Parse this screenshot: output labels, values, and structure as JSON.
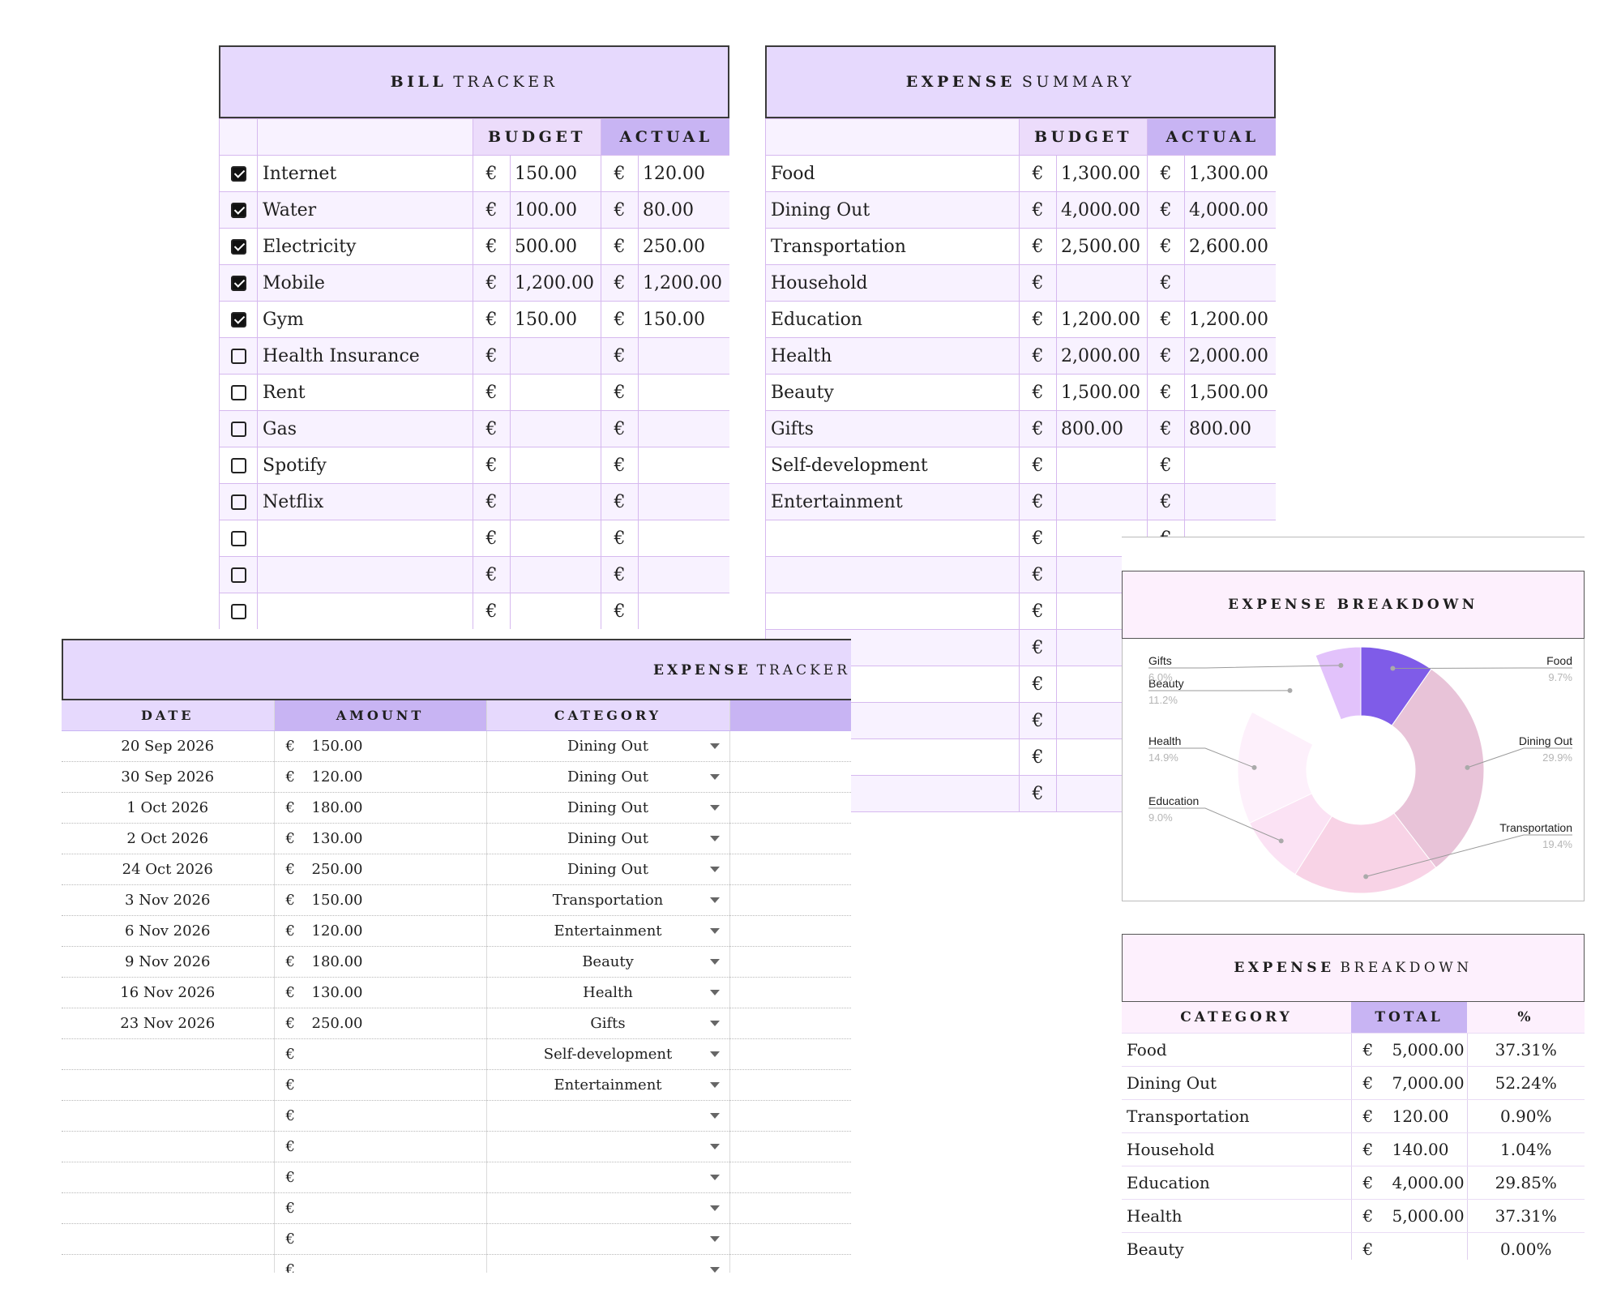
{
  "bill_tracker": {
    "title_bold": "BILL",
    "title_rest": "TRACKER",
    "budget_header": "BUDGET",
    "actual_header": "ACTUAL",
    "currency": "€",
    "rows": [
      {
        "checked": true,
        "name": "Internet",
        "budget": "150.00",
        "actual": "120.00"
      },
      {
        "checked": true,
        "name": "Water",
        "budget": "100.00",
        "actual": "80.00"
      },
      {
        "checked": true,
        "name": "Electricity",
        "budget": "500.00",
        "actual": "250.00"
      },
      {
        "checked": true,
        "name": "Mobile",
        "budget": "1,200.00",
        "actual": "1,200.00"
      },
      {
        "checked": true,
        "name": "Gym",
        "budget": "150.00",
        "actual": "150.00"
      },
      {
        "checked": false,
        "name": "Health Insurance",
        "budget": "",
        "actual": ""
      },
      {
        "checked": false,
        "name": "Rent",
        "budget": "",
        "actual": ""
      },
      {
        "checked": false,
        "name": "Gas",
        "budget": "",
        "actual": ""
      },
      {
        "checked": false,
        "name": "Spotify",
        "budget": "",
        "actual": ""
      },
      {
        "checked": false,
        "name": "Netflix",
        "budget": "",
        "actual": ""
      },
      {
        "checked": false,
        "name": "",
        "budget": "",
        "actual": ""
      },
      {
        "checked": false,
        "name": "",
        "budget": "",
        "actual": ""
      },
      {
        "checked": false,
        "name": "",
        "budget": "",
        "actual": ""
      }
    ]
  },
  "expense_summary": {
    "title_bold": "EXPENSE",
    "title_rest": "SUMMARY",
    "budget_header": "BUDGET",
    "actual_header": "ACTUAL",
    "currency": "€",
    "rows": [
      {
        "name": "Food",
        "budget": "1,300.00",
        "actual": "1,300.00"
      },
      {
        "name": "Dining Out",
        "budget": "4,000.00",
        "actual": "4,000.00"
      },
      {
        "name": "Transportation",
        "budget": "2,500.00",
        "actual": "2,600.00"
      },
      {
        "name": "Household",
        "budget": "",
        "actual": ""
      },
      {
        "name": "Education",
        "budget": "1,200.00",
        "actual": "1,200.00"
      },
      {
        "name": "Health",
        "budget": "2,000.00",
        "actual": "2,000.00"
      },
      {
        "name": "Beauty",
        "budget": "1,500.00",
        "actual": "1,500.00"
      },
      {
        "name": "Gifts",
        "budget": "800.00",
        "actual": "800.00"
      },
      {
        "name": "Self-development",
        "budget": "",
        "actual": ""
      },
      {
        "name": "Entertainment",
        "budget": "",
        "actual": ""
      },
      {
        "name": "",
        "budget": "",
        "actual": ""
      },
      {
        "name": "",
        "budget": "",
        "actual": ""
      },
      {
        "name": "",
        "budget": "",
        "actual": ""
      },
      {
        "name": "",
        "budget": "",
        "actual": ""
      },
      {
        "name": "",
        "budget": "",
        "actual": ""
      },
      {
        "name": "",
        "budget": "",
        "actual": ""
      },
      {
        "name": "",
        "budget": "",
        "actual": ""
      },
      {
        "name": "",
        "budget": "",
        "actual": ""
      }
    ]
  },
  "expense_tracker": {
    "title_bold": "EXPENSE",
    "title_rest": "TRACKER",
    "headers": {
      "date": "DATE",
      "amount": "AMOUNT",
      "category": "CATEGORY"
    },
    "currency": "€",
    "rows": [
      {
        "date": "20 Sep 2026",
        "amount": "150.00",
        "category": "Dining Out"
      },
      {
        "date": "30 Sep 2026",
        "amount": "120.00",
        "category": "Dining Out"
      },
      {
        "date": "1 Oct 2026",
        "amount": "180.00",
        "category": "Dining Out"
      },
      {
        "date": "2 Oct 2026",
        "amount": "130.00",
        "category": "Dining Out"
      },
      {
        "date": "24 Oct 2026",
        "amount": "250.00",
        "category": "Dining Out"
      },
      {
        "date": "3 Nov 2026",
        "amount": "150.00",
        "category": "Transportation"
      },
      {
        "date": "6 Nov 2026",
        "amount": "120.00",
        "category": "Entertainment"
      },
      {
        "date": "9 Nov 2026",
        "amount": "180.00",
        "category": "Beauty"
      },
      {
        "date": "16 Nov 2026",
        "amount": "130.00",
        "category": "Health"
      },
      {
        "date": "23 Nov 2026",
        "amount": "250.00",
        "category": "Gifts"
      },
      {
        "date": "",
        "amount": "",
        "category": "Self-development"
      },
      {
        "date": "",
        "amount": "",
        "category": "Entertainment"
      },
      {
        "date": "",
        "amount": "",
        "category": ""
      },
      {
        "date": "",
        "amount": "",
        "category": ""
      },
      {
        "date": "",
        "amount": "",
        "category": ""
      },
      {
        "date": "",
        "amount": "",
        "category": ""
      },
      {
        "date": "",
        "amount": "",
        "category": ""
      },
      {
        "date": "",
        "amount": "",
        "category": ""
      }
    ]
  },
  "breakdown_chart": {
    "title": "EXPENSE BREAKDOWN",
    "colors": {
      "Food": "#7f5ce8",
      "Dining Out": "#e8c3d8",
      "Transportation": "#f8d3e6",
      "Education": "#fbe2f4",
      "Health": "#fdf0fb",
      "Beauty": "#ffffff",
      "Gifts": "#e2c2fb"
    }
  },
  "chart_data": {
    "type": "pie",
    "title": "EXPENSE BREAKDOWN",
    "donut": true,
    "slices": [
      {
        "label": "Food",
        "pct_label": "9.7%",
        "value": 9.7
      },
      {
        "label": "Dining Out",
        "pct_label": "29.9%",
        "value": 29.9
      },
      {
        "label": "Transportation",
        "pct_label": "19.4%",
        "value": 19.4
      },
      {
        "label": "Education",
        "pct_label": "9.0%",
        "value": 9.0
      },
      {
        "label": "Health",
        "pct_label": "14.9%",
        "value": 14.9
      },
      {
        "label": "Beauty",
        "pct_label": "11.2%",
        "value": 11.2
      },
      {
        "label": "Gifts",
        "pct_label": "6.0%",
        "value": 6.0
      }
    ]
  },
  "breakdown_table": {
    "title_bold": "EXPENSE",
    "title_rest": "BREAKDOWN",
    "headers": {
      "category": "CATEGORY",
      "total": "TOTAL",
      "pct": "%"
    },
    "currency": "€",
    "rows": [
      {
        "category": "Food",
        "total": "5,000.00",
        "pct": "37.31%"
      },
      {
        "category": "Dining Out",
        "total": "7,000.00",
        "pct": "52.24%"
      },
      {
        "category": "Transportation",
        "total": "120.00",
        "pct": "0.90%"
      },
      {
        "category": "Household",
        "total": "140.00",
        "pct": "1.04%"
      },
      {
        "category": "Education",
        "total": "4,000.00",
        "pct": "29.85%"
      },
      {
        "category": "Health",
        "total": "5,000.00",
        "pct": "37.31%"
      },
      {
        "category": "Beauty",
        "total": "",
        "pct": "0.00%"
      }
    ]
  }
}
